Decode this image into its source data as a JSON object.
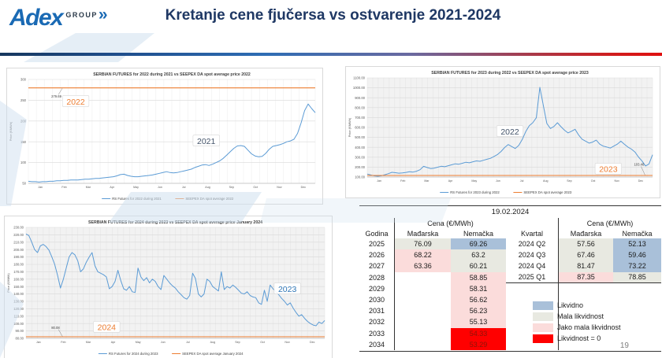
{
  "header": {
    "logo_text": "Adex",
    "logo_sub": "GROUP",
    "logo_chevrons": "»",
    "title": "Kretanje cene fjučersa vs ostvarenje 2021-2024",
    "page_number": "19"
  },
  "colors": {
    "title_navy": "#1f3864",
    "logo_blue": "#1a6ab4",
    "futures_blue": "#5b9bd5",
    "spot_orange": "#ed7d31",
    "liquidity_blue": "#a9c0d9",
    "liquidity_gray": "#e8e9e1",
    "liquidity_pink": "#fbdcdb",
    "liquidity_red": "#ff0000"
  },
  "chart_data": [
    {
      "type": "line",
      "title": "SERBIAN FUTURES for 2022 during 2021 vs SEEPEX DA spot average price 2022",
      "xlabel": "",
      "ylabel": "Price (€/MWh)",
      "ylim": [
        50,
        300
      ],
      "ytick_step": 50,
      "ytick_decimals": 0,
      "plot_bg": "#ffffff",
      "vgrid": 36,
      "x_labels": [
        "Jan",
        "Feb",
        "Mar",
        "Apr",
        "May",
        "Jun",
        "Jul",
        "Aug",
        "Sep",
        "Oct",
        "Nov",
        "Dec"
      ],
      "series": [
        {
          "name": "RS Futures for 2022 during 2021",
          "color_key": "futures_blue",
          "values": [
            55,
            54,
            54,
            53,
            54,
            54,
            55,
            55,
            56,
            56,
            57,
            57,
            58,
            58,
            58,
            59,
            60,
            60,
            61,
            62,
            62,
            63,
            64,
            65,
            66,
            68,
            71,
            72,
            69,
            67,
            66,
            66,
            67,
            68,
            69,
            70,
            72,
            74,
            76,
            78,
            76,
            75,
            76,
            78,
            80,
            82,
            84,
            88,
            91,
            94,
            95,
            93,
            96,
            100,
            104,
            110,
            118,
            126,
            134,
            140,
            141,
            139,
            130,
            121,
            116,
            114,
            115,
            122,
            132,
            139,
            141,
            143,
            146,
            150,
            152,
            156,
            170,
            195,
            225,
            241,
            230,
            220
          ]
        },
        {
          "name": "SEEPEX DA spot average 2022",
          "color_key": "spot_orange",
          "constant": 279.69
        }
      ],
      "point_label": {
        "text": "279.69",
        "x": 0.08,
        "y": 256
      },
      "annotations": [
        {
          "text": "2022",
          "x": 0.165,
          "y": 247,
          "style": "orange"
        },
        {
          "text": "2021",
          "x": 0.62,
          "y": 152,
          "style": "slate"
        }
      ]
    },
    {
      "type": "line",
      "title": "SERBIAN FUTURES for 2023 during 2022 vs SEEPEX DA spot average price 2023",
      "xlabel": "",
      "ylabel": "Price (€/MWh)",
      "ylim": [
        100,
        1100
      ],
      "ytick_step": 100,
      "ytick_decimals": 2,
      "plot_bg": "#f2f2f2",
      "vgrid": 52,
      "x_labels": [
        "Jan",
        "Feb",
        "Mar",
        "Apr",
        "May",
        "Jun",
        "Jul",
        "Aug",
        "Sep",
        "Oct",
        "Nov",
        "Dec"
      ],
      "series": [
        {
          "name": "RS Futures for 2023 during 2022",
          "color_key": "futures_blue",
          "values": [
            130,
            121,
            112,
            108,
            113,
            123,
            134,
            148,
            144,
            139,
            141,
            147,
            154,
            150,
            159,
            174,
            208,
            196,
            186,
            190,
            199,
            209,
            204,
            214,
            224,
            233,
            229,
            239,
            249,
            244,
            254,
            263,
            259,
            269,
            279,
            289,
            308,
            328,
            358,
            398,
            428,
            408,
            388,
            418,
            478,
            558,
            618,
            648,
            698,
            1005,
            818,
            640,
            590,
            610,
            648,
            608,
            572,
            545,
            562,
            582,
            525,
            482,
            462,
            442,
            452,
            472,
            432,
            412,
            402,
            392,
            412,
            432,
            462,
            432,
            402,
            382,
            352,
            302,
            262,
            212,
            232,
            325
          ]
        },
        {
          "name": "SEEPEX DA spot average 2023",
          "color_key": "spot_orange",
          "constant": 103.46
        }
      ],
      "point_label": {
        "text": "103.46",
        "x": 0.935,
        "y": 215
      },
      "annotations": [
        {
          "text": "2022",
          "x": 0.5,
          "y": 560,
          "style": "slate"
        },
        {
          "text": "2023",
          "x": 0.845,
          "y": 180,
          "style": "orange"
        }
      ]
    },
    {
      "type": "line",
      "title": "SERBIAN FUTURES for 2024 during 2023 vs SEEPEX DA spot average price January 2024",
      "xlabel": "",
      "ylabel": "Price (€/MWh)",
      "ylim": [
        80,
        230
      ],
      "ytick_step": 10,
      "ytick_decimals": 2,
      "plot_bg": "#f2f2f2",
      "vgrid": 52,
      "x_labels": [
        "Jan",
        "Feb",
        "Mar",
        "Apr",
        "May",
        "Jun",
        "Jul",
        "Aug",
        "Sep",
        "Oct",
        "Nov",
        "Dec"
      ],
      "series": [
        {
          "name": "RS Futures for 2024 during 2023",
          "color_key": "futures_blue",
          "values": [
            221,
            219,
            210,
            200,
            196,
            205,
            207,
            204,
            199,
            190,
            180,
            165,
            148,
            160,
            175,
            190,
            196,
            193,
            185,
            170,
            174,
            183,
            190,
            196,
            178,
            170,
            168,
            166,
            163,
            147,
            150,
            157,
            172,
            158,
            147,
            145,
            150,
            143,
            142,
            175,
            163,
            158,
            162,
            155,
            160,
            157,
            150,
            146,
            165,
            160,
            155,
            151,
            148,
            143,
            139,
            135,
            133,
            138,
            168,
            161,
            140,
            136,
            140,
            160,
            157,
            150,
            147,
            144,
            170,
            146,
            150,
            148,
            152,
            149,
            145,
            141,
            140,
            143,
            138,
            136,
            135,
            128,
            126,
            145,
            130,
            152,
            147,
            143,
            139,
            134,
            130,
            125,
            128,
            121,
            115,
            110,
            112,
            107,
            103,
            100,
            98,
            97,
            102,
            100,
            104
          ]
        },
        {
          "name": "SEEPEX DA spot average January 2024",
          "color_key": "spot_orange",
          "constant": 80.08
        }
      ],
      "point_label": {
        "text": "80.08",
        "x": 0.085,
        "y": 93
      },
      "annotations": [
        {
          "text": "2024",
          "x": 0.27,
          "y": 95,
          "style": "orange"
        },
        {
          "text": "2023",
          "x": 0.875,
          "y": 147,
          "style": "blue"
        }
      ]
    },
    {
      "type": "table",
      "title_date": "19.02.2024",
      "price_header": "Cena (€/MWh)",
      "columns": {
        "year": "Godina",
        "quarter": "Kvartal",
        "region1": "Mađarska",
        "region2": "Nemačka"
      },
      "years": [
        {
          "label": "2025",
          "hu": "76.09",
          "hu_c": "gray",
          "de": "69.26",
          "de_c": "blue"
        },
        {
          "label": "2026",
          "hu": "68.22",
          "hu_c": "pink",
          "de": "63.2",
          "de_c": "gray"
        },
        {
          "label": "2027",
          "hu": "63.36",
          "hu_c": "pink",
          "de": "60.21",
          "de_c": "gray"
        },
        {
          "label": "2028",
          "hu": "",
          "hu_c": "none",
          "de": "58.85",
          "de_c": "pink"
        },
        {
          "label": "2029",
          "hu": "",
          "hu_c": "none",
          "de": "58.31",
          "de_c": "pink"
        },
        {
          "label": "2030",
          "hu": "",
          "hu_c": "none",
          "de": "56.62",
          "de_c": "pink"
        },
        {
          "label": "2031",
          "hu": "",
          "hu_c": "none",
          "de": "56.23",
          "de_c": "pink"
        },
        {
          "label": "2032",
          "hu": "",
          "hu_c": "none",
          "de": "55.13",
          "de_c": "pink"
        },
        {
          "label": "2033",
          "hu": "",
          "hu_c": "none",
          "de": "54.33",
          "de_c": "red"
        },
        {
          "label": "2034",
          "hu": "",
          "hu_c": "none",
          "de": "53.29",
          "de_c": "red"
        }
      ],
      "quarters": [
        {
          "label": "2024 Q2",
          "hu": "57.56",
          "hu_c": "gray",
          "de": "52.13",
          "de_c": "blue"
        },
        {
          "label": "2024 Q3",
          "hu": "67.46",
          "hu_c": "gray",
          "de": "59.46",
          "de_c": "blue"
        },
        {
          "label": "2024 Q4",
          "hu": "81.47",
          "hu_c": "gray",
          "de": "73.22",
          "de_c": "blue"
        },
        {
          "label": "2025 Q1",
          "hu": "87.35",
          "hu_c": "pink",
          "de": "78.85",
          "de_c": "gray"
        }
      ],
      "legend": [
        {
          "label": "Likvidno",
          "color": "blue"
        },
        {
          "label": "Mala likvidnost",
          "color": "gray"
        },
        {
          "label": "Jako mala likvidnost",
          "color": "pink"
        },
        {
          "label": "Likvidnost = 0",
          "color": "red"
        }
      ]
    }
  ]
}
